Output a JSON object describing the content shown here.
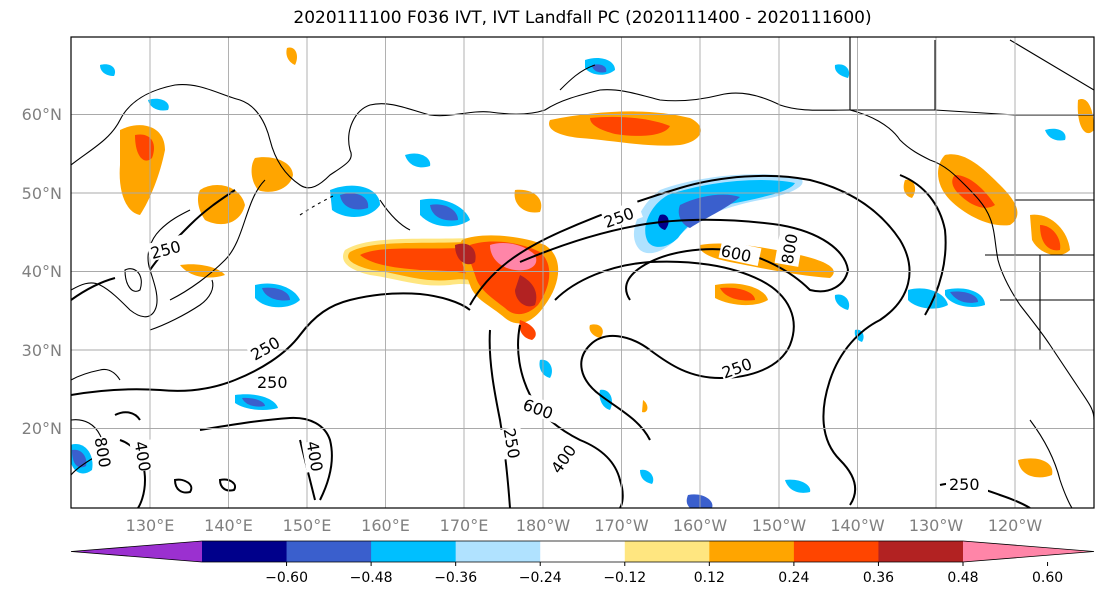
{
  "title": "2020111100 F036 IVT, IVT Landfall PC (2020111400 - 2020111600)",
  "lat_labels": [
    "60°N",
    "50°N",
    "40°N",
    "30°N",
    "20°N"
  ],
  "lon_labels": [
    "130°E",
    "140°E",
    "150°E",
    "160°E",
    "170°E",
    "180°W",
    "170°W",
    "160°W",
    "150°W",
    "140°W",
    "130°W",
    "120°W"
  ],
  "contour_labels": [
    "250",
    "250",
    "600",
    "800",
    "250",
    "250",
    "250",
    "600",
    "250",
    "400",
    "800",
    "400",
    "400",
    "250"
  ],
  "colorbar": {
    "ticks": [
      "−0.60",
      "−0.48",
      "−0.36",
      "−0.24",
      "−0.12",
      "0.12",
      "0.24",
      "0.36",
      "0.48",
      "0.60"
    ],
    "colors": [
      "#9b30d0",
      "#00008b",
      "#3a5fcd",
      "#00bfff",
      "#b0e2ff",
      "#ffffff",
      "#ffe680",
      "#ffa500",
      "#ff4500",
      "#b22222",
      "#ff85a8"
    ]
  },
  "shading_colors": {
    "light_blue": "#b0e2ff",
    "blue": "#00bfff",
    "royal": "#3a5fcd",
    "navy": "#00008b",
    "yellow": "#ffe680",
    "orange": "#ffa500",
    "red_orange": "#ff4500",
    "dark_red": "#b22222",
    "pink": "#ff85a8"
  }
}
